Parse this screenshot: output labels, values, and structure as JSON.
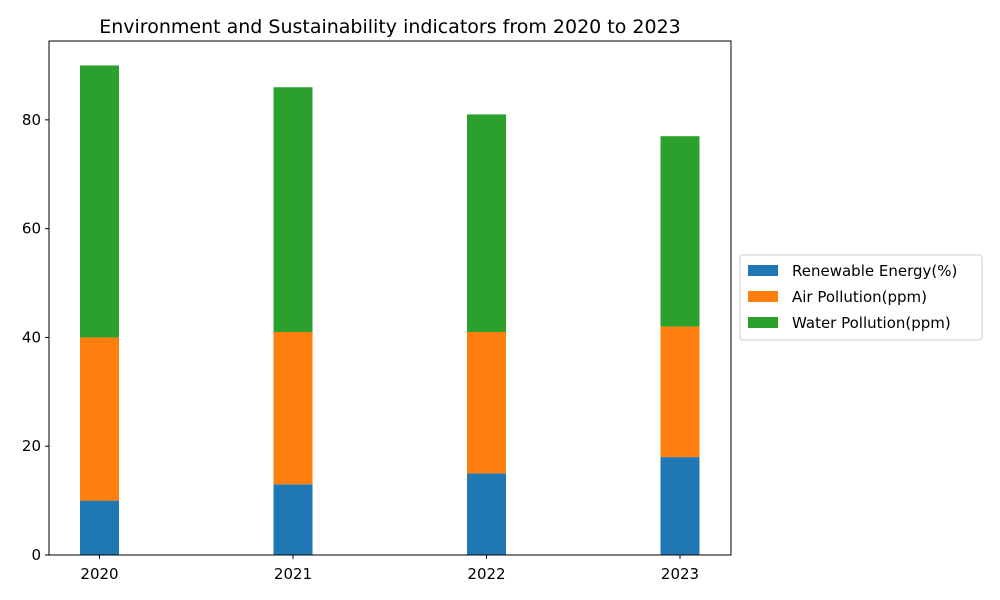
{
  "chart_data": {
    "type": "bar",
    "stacked": true,
    "title": "Environment and Sustainability indicators from 2020 to 2023",
    "xlabel": "",
    "ylabel": "",
    "categories": [
      "2020",
      "2021",
      "2022",
      "2023"
    ],
    "series": [
      {
        "name": "Renewable Energy(%)",
        "color": "#1f77b4",
        "values": [
          10,
          13,
          15,
          18
        ]
      },
      {
        "name": "Air Pollution(ppm)",
        "color": "#ff7f0e",
        "values": [
          30,
          28,
          26,
          24
        ]
      },
      {
        "name": "Water Pollution(ppm)",
        "color": "#2ca02c",
        "values": [
          50,
          45,
          40,
          35
        ]
      }
    ],
    "ylim": [
      0,
      94.5
    ],
    "yticks": [
      0,
      20,
      40,
      60,
      80
    ],
    "grid": false,
    "legend_position": "center-right-outside"
  }
}
